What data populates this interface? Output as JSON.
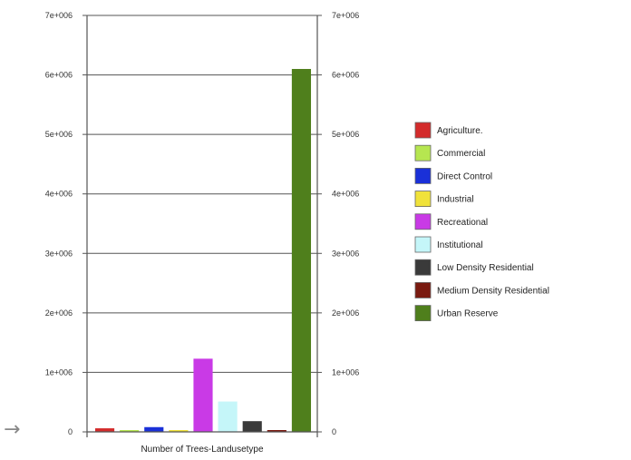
{
  "chart_data": {
    "type": "bar",
    "categories": [
      "Agriculture",
      "Commercial",
      "Direct Control",
      "Industrial",
      "Recreational",
      "Institutional",
      "Low Density Residential",
      "Medium Density Residential",
      "Urban Reserve"
    ],
    "legend_labels": [
      "Agriculture.",
      "Commercial",
      "Direct Control",
      "Industrial",
      "Recreational",
      "Institutional",
      "Low Density Residential",
      "Medium Density Residential",
      "Urban Reserve"
    ],
    "values": [
      60000,
      20000,
      80000,
      20000,
      1230000,
      510000,
      180000,
      20000,
      6100000
    ],
    "colors": [
      "#d32b2b",
      "#b6e650",
      "#1a30d8",
      "#f0e23a",
      "#c93ae6",
      "#c5f6f9",
      "#3a3a3a",
      "#7a1a10",
      "#4f7f1c"
    ],
    "xlabel": "Number of Trees-Landusetype",
    "ylim": [
      0,
      7000000
    ],
    "yticks": [
      0,
      1000000,
      2000000,
      3000000,
      4000000,
      5000000,
      6000000,
      7000000
    ],
    "ytick_labels": [
      "0",
      "1e+006",
      "2e+006",
      "3e+006",
      "4e+006",
      "5e+006",
      "6e+006",
      "7e+006"
    ],
    "grid": true,
    "legend_position": "right"
  },
  "arrow_glyph": "→"
}
